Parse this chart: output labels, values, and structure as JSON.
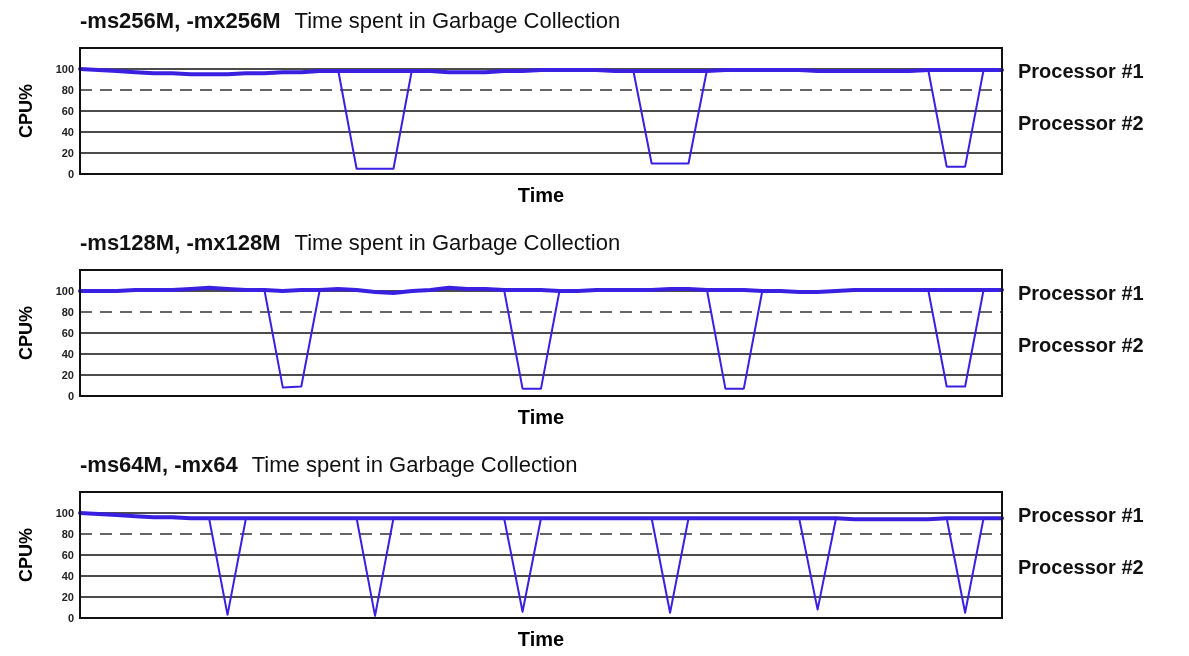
{
  "chart_data": [
    {
      "type": "line",
      "title": "-ms256M, -mx256M",
      "subtitle": "Time spent in Garbage Collection",
      "xlabel": "Time",
      "ylabel": "CPU%",
      "categories": [
        null,
        null,
        null,
        null,
        null,
        null,
        null,
        null,
        null,
        null,
        null,
        null,
        null,
        null,
        null,
        null,
        null,
        null,
        null,
        null,
        null,
        null,
        null,
        null,
        null,
        null,
        null,
        null,
        null,
        null,
        null,
        null,
        null,
        null,
        null,
        null,
        null,
        null,
        null,
        null,
        null,
        null,
        null,
        null,
        null,
        null,
        null,
        null,
        null,
        null,
        null
      ],
      "ylim": [
        0,
        120
      ],
      "yticks": [
        0,
        20,
        40,
        60,
        80,
        100
      ],
      "grid": "y",
      "tick_labels": "y",
      "line_style": "solid",
      "marker": "none",
      "ref_lines": [
        {
          "axis": "y",
          "value": 80,
          "line_style": "dashed",
          "color": "#333333"
        }
      ],
      "annotations": [
        "Processor #1",
        "Processor #2"
      ],
      "series": [
        {
          "color": "#3a20e0",
          "values": [
            100,
            99,
            98,
            97,
            96,
            96,
            95,
            95,
            95,
            96,
            96,
            97,
            97,
            98,
            98,
            98,
            98,
            98,
            98,
            98,
            97,
            97,
            97,
            98,
            98,
            99,
            99,
            99,
            99,
            98,
            98,
            98,
            98,
            98,
            98,
            99,
            99,
            99,
            99,
            99,
            98,
            98,
            98,
            98,
            98,
            98,
            99,
            99,
            99,
            99,
            99
          ]
        },
        {
          "color": "#3a20e0",
          "values": [
            100,
            99,
            98,
            97,
            96,
            96,
            95,
            95,
            95,
            96,
            96,
            97,
            97,
            98,
            99,
            5,
            5,
            5,
            99,
            98,
            97,
            97,
            97,
            98,
            98,
            99,
            99,
            99,
            99,
            98,
            99,
            10,
            10,
            10,
            99,
            99,
            99,
            99,
            99,
            99,
            98,
            98,
            98,
            98,
            98,
            98,
            99,
            7,
            7,
            99,
            99
          ]
        }
      ]
    },
    {
      "type": "line",
      "title": "-ms128M, -mx128M",
      "subtitle": "Time spent in Garbage Collection",
      "xlabel": "Time",
      "ylabel": "CPU%",
      "categories": [
        null,
        null,
        null,
        null,
        null,
        null,
        null,
        null,
        null,
        null,
        null,
        null,
        null,
        null,
        null,
        null,
        null,
        null,
        null,
        null,
        null,
        null,
        null,
        null,
        null,
        null,
        null,
        null,
        null,
        null,
        null,
        null,
        null,
        null,
        null,
        null,
        null,
        null,
        null,
        null,
        null,
        null,
        null,
        null,
        null,
        null,
        null,
        null,
        null,
        null,
        null
      ],
      "ylim": [
        0,
        120
      ],
      "yticks": [
        0,
        20,
        40,
        60,
        80,
        100
      ],
      "grid": "y",
      "tick_labels": "y",
      "line_style": "solid",
      "marker": "none",
      "ref_lines": [
        {
          "axis": "y",
          "value": 80,
          "line_style": "dashed",
          "color": "#333333"
        }
      ],
      "annotations": [
        "Processor #1",
        "Processor #2"
      ],
      "series": [
        {
          "color": "#3a20e0",
          "values": [
            100,
            100,
            100,
            101,
            101,
            101,
            102,
            103,
            102,
            101,
            101,
            100,
            101,
            101,
            102,
            101,
            99,
            98,
            100,
            101,
            103,
            102,
            102,
            101,
            101,
            101,
            100,
            100,
            101,
            101,
            101,
            101,
            102,
            102,
            101,
            101,
            101,
            100,
            100,
            99,
            99,
            100,
            101,
            101,
            101,
            101,
            101,
            101,
            101,
            101,
            101
          ]
        },
        {
          "color": "#3a20e0",
          "values": [
            100,
            100,
            100,
            101,
            101,
            101,
            102,
            103,
            102,
            101,
            101,
            8,
            9,
            101,
            102,
            101,
            99,
            98,
            100,
            101,
            103,
            102,
            102,
            101,
            7,
            7,
            100,
            100,
            101,
            101,
            101,
            101,
            102,
            102,
            101,
            7,
            7,
            100,
            100,
            99,
            99,
            100,
            101,
            101,
            101,
            101,
            101,
            9,
            9,
            101,
            101
          ]
        }
      ]
    },
    {
      "type": "line",
      "title": "-ms64M, -mx64",
      "subtitle": "Time spent in Garbage Collection",
      "xlabel": "Time",
      "ylabel": "CPU%",
      "categories": [
        null,
        null,
        null,
        null,
        null,
        null,
        null,
        null,
        null,
        null,
        null,
        null,
        null,
        null,
        null,
        null,
        null,
        null,
        null,
        null,
        null,
        null,
        null,
        null,
        null,
        null,
        null,
        null,
        null,
        null,
        null,
        null,
        null,
        null,
        null,
        null,
        null,
        null,
        null,
        null,
        null,
        null,
        null,
        null,
        null,
        null,
        null,
        null,
        null,
        null,
        null
      ],
      "ylim": [
        0,
        120
      ],
      "yticks": [
        0,
        20,
        40,
        60,
        80,
        100
      ],
      "grid": "y",
      "tick_labels": "y",
      "line_style": "solid",
      "marker": "none",
      "ref_lines": [
        {
          "axis": "y",
          "value": 80,
          "line_style": "dashed",
          "color": "#333333"
        }
      ],
      "annotations": [
        "Processor #1",
        "Processor #2"
      ],
      "series": [
        {
          "color": "#3a20e0",
          "values": [
            100,
            99,
            98,
            97,
            96,
            96,
            95,
            95,
            95,
            95,
            95,
            95,
            95,
            95,
            95,
            95,
            95,
            95,
            95,
            95,
            95,
            95,
            95,
            95,
            95,
            95,
            95,
            95,
            95,
            95,
            95,
            95,
            95,
            95,
            95,
            95,
            95,
            95,
            95,
            95,
            95,
            95,
            94,
            94,
            94,
            94,
            94,
            95,
            95,
            95,
            95
          ]
        },
        {
          "color": "#3a20e0",
          "values": [
            100,
            99,
            98,
            97,
            96,
            96,
            95,
            95,
            3,
            95,
            95,
            95,
            95,
            95,
            95,
            95,
            2,
            95,
            95,
            95,
            95,
            95,
            95,
            95,
            6,
            95,
            95,
            95,
            95,
            95,
            95,
            95,
            5,
            95,
            95,
            95,
            95,
            95,
            95,
            95,
            8,
            95,
            94,
            94,
            94,
            94,
            94,
            95,
            5,
            95,
            95
          ]
        }
      ]
    }
  ]
}
